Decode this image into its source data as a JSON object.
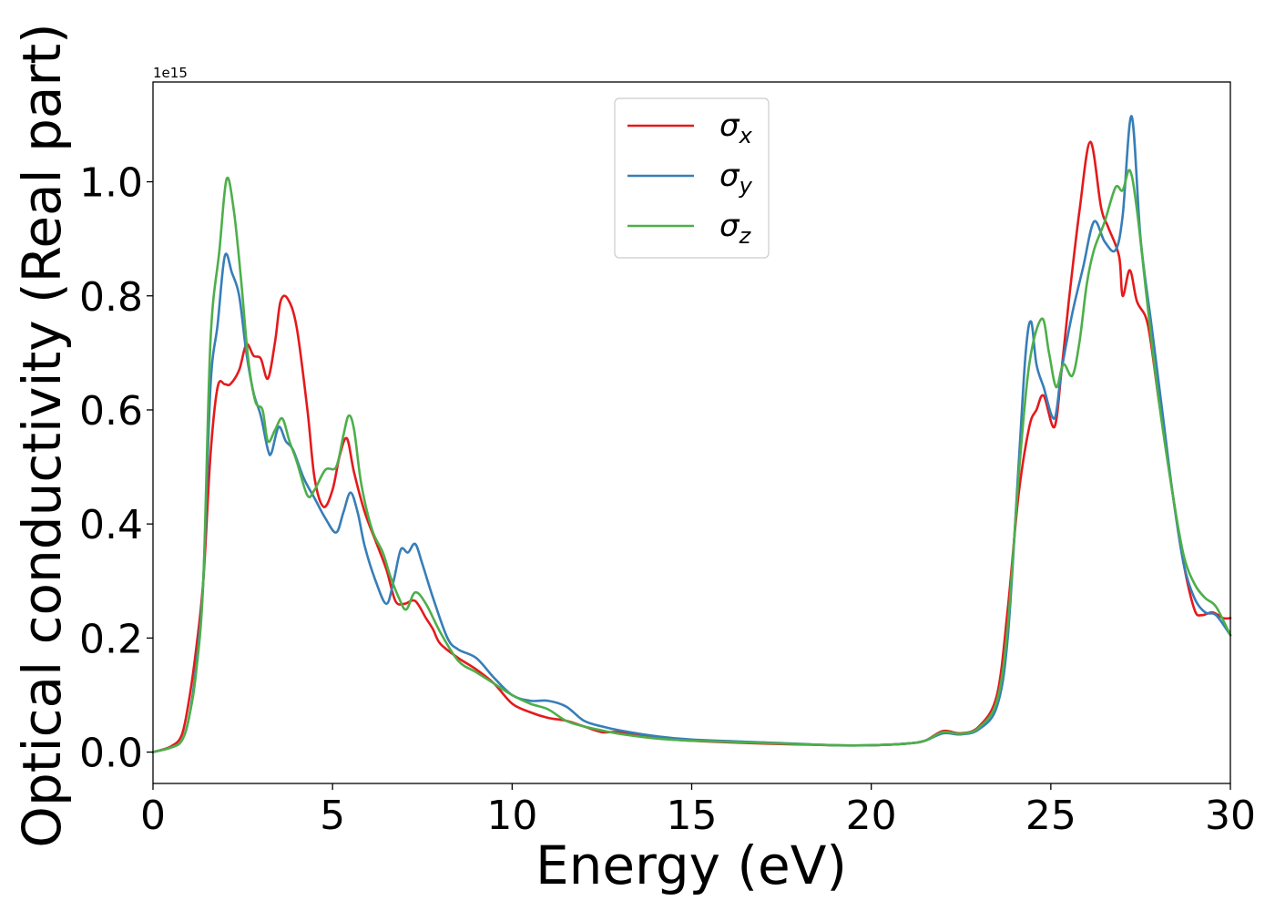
{
  "chart_data": {
    "type": "line",
    "title": "",
    "xlabel": "Energy (eV)",
    "ylabel": "Optical conductivity (Real part)",
    "y_offset_label": "1e15",
    "xlim": [
      0,
      30
    ],
    "ylim": [
      -0.055,
      1.175
    ],
    "y_scale_factor": 1000000000000000.0,
    "x_ticks": [
      0,
      5,
      10,
      15,
      20,
      25,
      30
    ],
    "x_tick_labels": [
      "0",
      "5",
      "10",
      "15",
      "20",
      "25",
      "30"
    ],
    "y_ticks": [
      0.0,
      0.2,
      0.4,
      0.6,
      0.8,
      1.0
    ],
    "y_tick_labels": [
      "0.0",
      "0.2",
      "0.4",
      "0.6",
      "0.8",
      "1.0"
    ],
    "grid": false,
    "legend": "top-center",
    "series": [
      {
        "name": "σx",
        "legend_symbol": "σ",
        "legend_sub": "x",
        "color": "#e41a1c",
        "points": [
          [
            0,
            0.0
          ],
          [
            0.5,
            0.01
          ],
          [
            0.8,
            0.03
          ],
          [
            1.0,
            0.09
          ],
          [
            1.2,
            0.18
          ],
          [
            1.4,
            0.3
          ],
          [
            1.6,
            0.52
          ],
          [
            1.8,
            0.64
          ],
          [
            2.0,
            0.645
          ],
          [
            2.15,
            0.645
          ],
          [
            2.4,
            0.67
          ],
          [
            2.6,
            0.715
          ],
          [
            2.8,
            0.695
          ],
          [
            3.0,
            0.69
          ],
          [
            3.2,
            0.655
          ],
          [
            3.4,
            0.72
          ],
          [
            3.55,
            0.79
          ],
          [
            3.75,
            0.795
          ],
          [
            4.0,
            0.745
          ],
          [
            4.3,
            0.6
          ],
          [
            4.5,
            0.48
          ],
          [
            4.75,
            0.43
          ],
          [
            5.0,
            0.46
          ],
          [
            5.2,
            0.52
          ],
          [
            5.4,
            0.55
          ],
          [
            5.6,
            0.49
          ],
          [
            5.9,
            0.42
          ],
          [
            6.2,
            0.37
          ],
          [
            6.5,
            0.32
          ],
          [
            6.75,
            0.265
          ],
          [
            7.0,
            0.26
          ],
          [
            7.3,
            0.265
          ],
          [
            7.6,
            0.235
          ],
          [
            7.8,
            0.215
          ],
          [
            8.0,
            0.19
          ],
          [
            8.5,
            0.165
          ],
          [
            9.0,
            0.145
          ],
          [
            9.5,
            0.12
          ],
          [
            10.0,
            0.085
          ],
          [
            10.5,
            0.07
          ],
          [
            11.0,
            0.06
          ],
          [
            11.5,
            0.055
          ],
          [
            12.0,
            0.045
          ],
          [
            12.5,
            0.035
          ],
          [
            13.0,
            0.035
          ],
          [
            14.0,
            0.025
          ],
          [
            15.0,
            0.02
          ],
          [
            17.0,
            0.015
          ],
          [
            19.0,
            0.012
          ],
          [
            20.0,
            0.012
          ],
          [
            21.0,
            0.015
          ],
          [
            21.5,
            0.02
          ],
          [
            22.0,
            0.037
          ],
          [
            22.5,
            0.033
          ],
          [
            23.0,
            0.045
          ],
          [
            23.5,
            0.1
          ],
          [
            23.8,
            0.25
          ],
          [
            24.1,
            0.45
          ],
          [
            24.4,
            0.57
          ],
          [
            24.6,
            0.6
          ],
          [
            24.8,
            0.625
          ],
          [
            25.1,
            0.57
          ],
          [
            25.3,
            0.67
          ],
          [
            25.5,
            0.79
          ],
          [
            25.8,
            0.95
          ],
          [
            26.1,
            1.07
          ],
          [
            26.4,
            0.955
          ],
          [
            26.6,
            0.92
          ],
          [
            26.9,
            0.87
          ],
          [
            27.0,
            0.8
          ],
          [
            27.2,
            0.845
          ],
          [
            27.4,
            0.79
          ],
          [
            27.7,
            0.75
          ],
          [
            28.0,
            0.62
          ],
          [
            28.4,
            0.45
          ],
          [
            28.7,
            0.33
          ],
          [
            29.0,
            0.25
          ],
          [
            29.2,
            0.24
          ],
          [
            29.5,
            0.245
          ],
          [
            29.8,
            0.235
          ],
          [
            30.0,
            0.235
          ]
        ]
      },
      {
        "name": "σy",
        "legend_symbol": "σ",
        "legend_sub": "y",
        "color": "#377eb8",
        "points": [
          [
            0,
            0.0
          ],
          [
            0.5,
            0.008
          ],
          [
            0.8,
            0.02
          ],
          [
            1.0,
            0.06
          ],
          [
            1.2,
            0.15
          ],
          [
            1.4,
            0.3
          ],
          [
            1.6,
            0.64
          ],
          [
            1.8,
            0.75
          ],
          [
            2.0,
            0.87
          ],
          [
            2.2,
            0.84
          ],
          [
            2.4,
            0.8
          ],
          [
            2.6,
            0.7
          ],
          [
            2.8,
            0.63
          ],
          [
            3.0,
            0.59
          ],
          [
            3.2,
            0.53
          ],
          [
            3.3,
            0.525
          ],
          [
            3.5,
            0.57
          ],
          [
            3.7,
            0.545
          ],
          [
            3.9,
            0.53
          ],
          [
            4.2,
            0.48
          ],
          [
            4.5,
            0.445
          ],
          [
            4.8,
            0.41
          ],
          [
            5.1,
            0.385
          ],
          [
            5.3,
            0.42
          ],
          [
            5.5,
            0.455
          ],
          [
            5.7,
            0.42
          ],
          [
            5.9,
            0.36
          ],
          [
            6.2,
            0.3
          ],
          [
            6.5,
            0.26
          ],
          [
            6.7,
            0.3
          ],
          [
            6.9,
            0.355
          ],
          [
            7.1,
            0.35
          ],
          [
            7.3,
            0.365
          ],
          [
            7.5,
            0.33
          ],
          [
            7.8,
            0.27
          ],
          [
            8.2,
            0.2
          ],
          [
            8.5,
            0.18
          ],
          [
            9.0,
            0.165
          ],
          [
            9.5,
            0.13
          ],
          [
            10.0,
            0.1
          ],
          [
            10.5,
            0.09
          ],
          [
            11.0,
            0.09
          ],
          [
            11.5,
            0.08
          ],
          [
            12.0,
            0.055
          ],
          [
            12.5,
            0.045
          ],
          [
            13.0,
            0.038
          ],
          [
            14.0,
            0.028
          ],
          [
            15.0,
            0.022
          ],
          [
            17.0,
            0.017
          ],
          [
            19.0,
            0.012
          ],
          [
            20.0,
            0.012
          ],
          [
            21.0,
            0.015
          ],
          [
            21.5,
            0.02
          ],
          [
            22.0,
            0.033
          ],
          [
            22.5,
            0.031
          ],
          [
            23.0,
            0.04
          ],
          [
            23.5,
            0.08
          ],
          [
            23.8,
            0.2
          ],
          [
            24.1,
            0.5
          ],
          [
            24.3,
            0.7
          ],
          [
            24.45,
            0.755
          ],
          [
            24.6,
            0.68
          ],
          [
            24.8,
            0.64
          ],
          [
            25.1,
            0.585
          ],
          [
            25.3,
            0.67
          ],
          [
            25.6,
            0.77
          ],
          [
            25.9,
            0.85
          ],
          [
            26.2,
            0.93
          ],
          [
            26.5,
            0.895
          ],
          [
            26.8,
            0.88
          ],
          [
            27.0,
            0.94
          ],
          [
            27.25,
            1.115
          ],
          [
            27.5,
            0.9
          ],
          [
            27.8,
            0.75
          ],
          [
            28.1,
            0.6
          ],
          [
            28.4,
            0.45
          ],
          [
            28.7,
            0.33
          ],
          [
            29.0,
            0.27
          ],
          [
            29.3,
            0.245
          ],
          [
            29.6,
            0.24
          ],
          [
            30.0,
            0.205
          ]
        ]
      },
      {
        "name": "σz",
        "legend_symbol": "σ",
        "legend_sub": "z",
        "color": "#4daf4a",
        "points": [
          [
            0,
            0.0
          ],
          [
            0.5,
            0.008
          ],
          [
            0.8,
            0.02
          ],
          [
            1.0,
            0.06
          ],
          [
            1.2,
            0.14
          ],
          [
            1.4,
            0.3
          ],
          [
            1.6,
            0.72
          ],
          [
            1.85,
            0.88
          ],
          [
            2.05,
            1.005
          ],
          [
            2.25,
            0.95
          ],
          [
            2.45,
            0.83
          ],
          [
            2.65,
            0.69
          ],
          [
            2.85,
            0.615
          ],
          [
            3.05,
            0.6
          ],
          [
            3.2,
            0.545
          ],
          [
            3.4,
            0.565
          ],
          [
            3.6,
            0.585
          ],
          [
            3.8,
            0.545
          ],
          [
            4.0,
            0.51
          ],
          [
            4.3,
            0.45
          ],
          [
            4.5,
            0.46
          ],
          [
            4.8,
            0.495
          ],
          [
            5.1,
            0.5
          ],
          [
            5.3,
            0.555
          ],
          [
            5.45,
            0.59
          ],
          [
            5.6,
            0.565
          ],
          [
            5.8,
            0.47
          ],
          [
            6.1,
            0.39
          ],
          [
            6.4,
            0.35
          ],
          [
            6.6,
            0.31
          ],
          [
            6.85,
            0.27
          ],
          [
            7.05,
            0.25
          ],
          [
            7.3,
            0.28
          ],
          [
            7.6,
            0.26
          ],
          [
            8.0,
            0.21
          ],
          [
            8.5,
            0.16
          ],
          [
            9.0,
            0.14
          ],
          [
            9.5,
            0.12
          ],
          [
            10.0,
            0.1
          ],
          [
            10.5,
            0.085
          ],
          [
            11.0,
            0.075
          ],
          [
            11.5,
            0.055
          ],
          [
            12.0,
            0.045
          ],
          [
            12.5,
            0.038
          ],
          [
            13.0,
            0.032
          ],
          [
            14.0,
            0.024
          ],
          [
            15.0,
            0.02
          ],
          [
            17.0,
            0.016
          ],
          [
            19.0,
            0.012
          ],
          [
            20.0,
            0.012
          ],
          [
            21.0,
            0.015
          ],
          [
            21.5,
            0.02
          ],
          [
            22.0,
            0.035
          ],
          [
            22.5,
            0.032
          ],
          [
            23.0,
            0.043
          ],
          [
            23.5,
            0.09
          ],
          [
            23.8,
            0.22
          ],
          [
            24.1,
            0.48
          ],
          [
            24.4,
            0.68
          ],
          [
            24.75,
            0.76
          ],
          [
            24.95,
            0.7
          ],
          [
            25.15,
            0.64
          ],
          [
            25.35,
            0.68
          ],
          [
            25.6,
            0.66
          ],
          [
            25.8,
            0.72
          ],
          [
            26.0,
            0.82
          ],
          [
            26.2,
            0.88
          ],
          [
            26.5,
            0.93
          ],
          [
            26.8,
            0.99
          ],
          [
            27.0,
            0.985
          ],
          [
            27.2,
            1.02
          ],
          [
            27.4,
            0.95
          ],
          [
            27.7,
            0.78
          ],
          [
            28.0,
            0.62
          ],
          [
            28.4,
            0.45
          ],
          [
            28.7,
            0.345
          ],
          [
            29.0,
            0.295
          ],
          [
            29.3,
            0.27
          ],
          [
            29.6,
            0.255
          ],
          [
            30.0,
            0.205
          ]
        ]
      }
    ]
  }
}
